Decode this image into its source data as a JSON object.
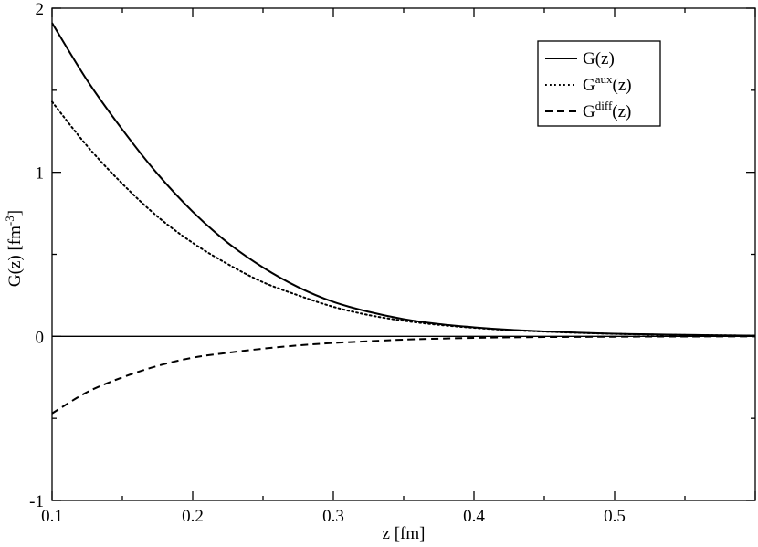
{
  "chart_data": {
    "type": "line",
    "title": "",
    "xlabel": "z [fm]",
    "ylabel": {
      "main": "G(z) [fm",
      "sup": "-3",
      "close": "]"
    },
    "xlim": [
      0.1,
      0.6
    ],
    "ylim": [
      -1,
      2
    ],
    "x_ticks": [
      {
        "value": 0.1,
        "label": "0.1"
      },
      {
        "value": 0.2,
        "label": "0.2"
      },
      {
        "value": 0.3,
        "label": "0.3"
      },
      {
        "value": 0.4,
        "label": "0.4"
      },
      {
        "value": 0.5,
        "label": "0.5"
      }
    ],
    "y_ticks": [
      {
        "value": -1,
        "label": "-1"
      },
      {
        "value": 0,
        "label": "0"
      },
      {
        "value": 1,
        "label": "1"
      },
      {
        "value": 2,
        "label": "2"
      }
    ],
    "zero_line": true,
    "grid": false,
    "legend_position": "top-right",
    "series": [
      {
        "key": "g",
        "legend": {
          "base": "G",
          "sup": "",
          "arg": "(z)"
        },
        "style": "solid",
        "color": "#000000",
        "x": [
          0.1,
          0.125,
          0.15,
          0.175,
          0.2,
          0.225,
          0.25,
          0.275,
          0.3,
          0.325,
          0.35,
          0.375,
          0.4,
          0.425,
          0.45,
          0.475,
          0.5,
          0.525,
          0.55,
          0.575,
          0.6
        ],
        "y": [
          1.91,
          1.56,
          1.26,
          0.99,
          0.76,
          0.57,
          0.42,
          0.3,
          0.21,
          0.15,
          0.105,
          0.075,
          0.055,
          0.04,
          0.03,
          0.022,
          0.016,
          0.012,
          0.009,
          0.006,
          0.004
        ]
      },
      {
        "key": "gaux",
        "legend": {
          "base": "G",
          "sup": "aux",
          "arg": "(z)"
        },
        "style": "dotted",
        "color": "#000000",
        "x": [
          0.1,
          0.125,
          0.15,
          0.175,
          0.2,
          0.225,
          0.25,
          0.275,
          0.3,
          0.325,
          0.35,
          0.375,
          0.4,
          0.425,
          0.45,
          0.475,
          0.5,
          0.525,
          0.55,
          0.575,
          0.6
        ],
        "y": [
          1.43,
          1.16,
          0.93,
          0.73,
          0.57,
          0.44,
          0.33,
          0.25,
          0.18,
          0.13,
          0.095,
          0.07,
          0.052,
          0.038,
          0.029,
          0.021,
          0.015,
          0.011,
          0.008,
          0.006,
          0.004
        ]
      },
      {
        "key": "gdiff",
        "legend": {
          "base": "G",
          "sup": "diff",
          "arg": "(z)"
        },
        "style": "dashed",
        "color": "#000000",
        "x": [
          0.1,
          0.125,
          0.15,
          0.175,
          0.2,
          0.225,
          0.25,
          0.275,
          0.3,
          0.325,
          0.35,
          0.375,
          0.4,
          0.425,
          0.45,
          0.475,
          0.5,
          0.525,
          0.55,
          0.575,
          0.6
        ],
        "y": [
          -0.47,
          -0.34,
          -0.25,
          -0.18,
          -0.13,
          -0.1,
          -0.075,
          -0.055,
          -0.04,
          -0.03,
          -0.02,
          -0.014,
          -0.009,
          -0.006,
          -0.004,
          -0.003,
          -0.002,
          -0.001,
          -0.001,
          0,
          0
        ]
      }
    ]
  }
}
